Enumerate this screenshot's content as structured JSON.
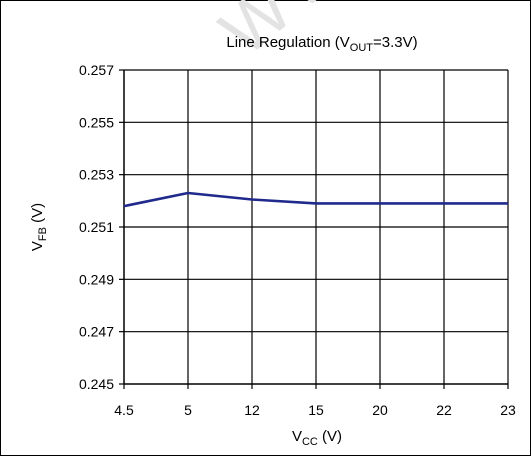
{
  "watermark": "WWW. S",
  "chart_data": {
    "type": "line",
    "title": {
      "main": "Line Regulation  (V",
      "sub": "OUT",
      "tail": "=3.3V)"
    },
    "xlabel": {
      "main": "V",
      "sub": "CC",
      "tail": " (V)"
    },
    "ylabel": {
      "main": "V",
      "sub": "FB",
      "tail": " (V)"
    },
    "categories": [
      "4.5",
      "5",
      "12",
      "15",
      "20",
      "22",
      "23"
    ],
    "ylim": [
      0.245,
      0.257
    ],
    "yticks": [
      "0.257",
      "0.255",
      "0.253",
      "0.251",
      "0.249",
      "0.247",
      "0.245"
    ],
    "grid": true,
    "line_color": "#1f2a8c",
    "series": [
      {
        "values": [
          0.2518,
          0.2523,
          0.25205,
          0.2519,
          0.2519,
          0.2519,
          0.2519
        ]
      }
    ]
  }
}
